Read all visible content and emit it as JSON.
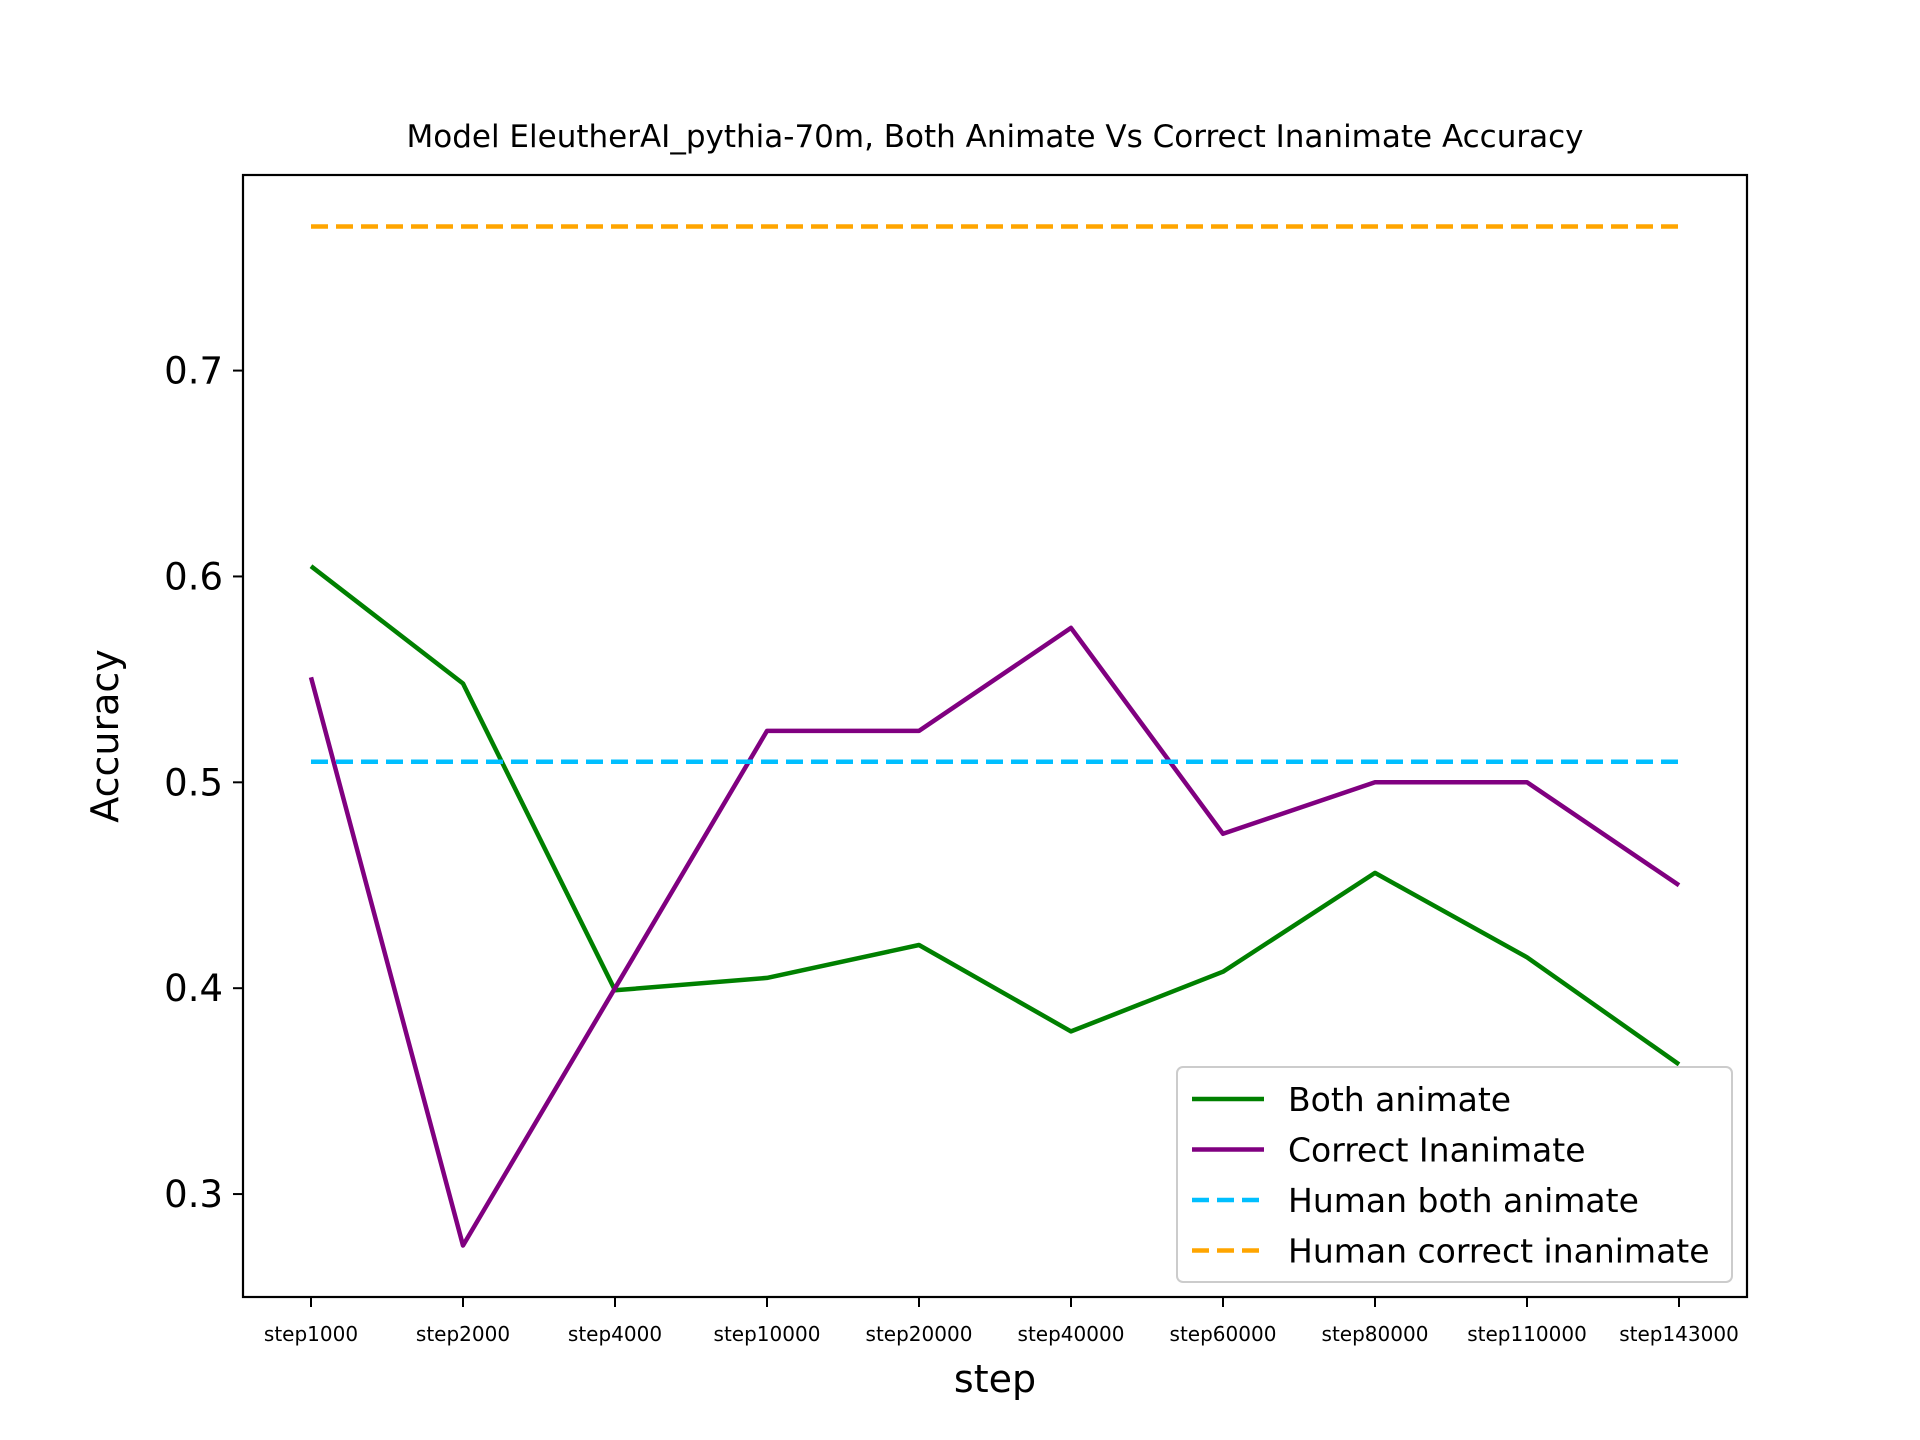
{
  "chart_data": {
    "type": "line",
    "title": "Model EleutherAI_pythia-70m, Both Animate Vs Correct Inanimate Accuracy",
    "xlabel": "step",
    "ylabel": "Accuracy",
    "categories": [
      "step1000",
      "step2000",
      "step4000",
      "step10000",
      "step20000",
      "step40000",
      "step60000",
      "step80000",
      "step110000",
      "step143000"
    ],
    "ylim": [
      0.25,
      0.795
    ],
    "yticks": [
      0.3,
      0.4,
      0.5,
      0.6,
      0.7
    ],
    "grid": false,
    "legend_position": "lower-right",
    "series": [
      {
        "name": "Both animate",
        "color": "#008000",
        "style": "solid",
        "values": [
          0.605,
          0.548,
          0.399,
          0.405,
          0.421,
          0.379,
          0.408,
          0.456,
          0.415,
          0.363
        ]
      },
      {
        "name": "Correct Inanimate",
        "color": "#800080",
        "style": "solid",
        "values": [
          0.551,
          0.275,
          0.4,
          0.525,
          0.525,
          0.575,
          0.475,
          0.5,
          0.5,
          0.45
        ]
      },
      {
        "name": "Human both animate",
        "color": "#00bfff",
        "style": "dashed",
        "values": [
          0.51,
          0.51,
          0.51,
          0.51,
          0.51,
          0.51,
          0.51,
          0.51,
          0.51,
          0.51
        ]
      },
      {
        "name": "Human correct inanimate",
        "color": "#ffa500",
        "style": "dashed",
        "values": [
          0.77,
          0.77,
          0.77,
          0.77,
          0.77,
          0.77,
          0.77,
          0.77,
          0.77,
          0.77
        ]
      }
    ]
  }
}
